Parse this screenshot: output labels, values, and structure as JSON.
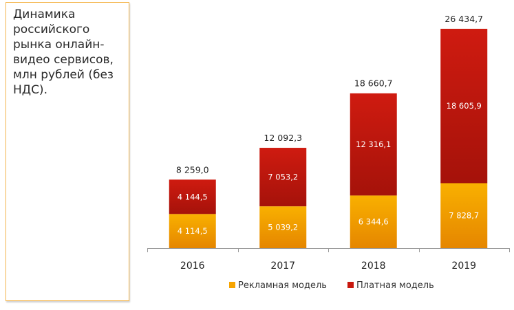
{
  "title": "Динамика российского рынка онлайн-видео сервисов, млн рублей (без НДС).",
  "colors": {
    "advertising": "#f7a400",
    "advertising_dark": "#e07f00",
    "paid": "#c8180e",
    "paid_dark": "#a81008",
    "axis": "#9a9a9a",
    "text": "#222222"
  },
  "chart_data": {
    "type": "bar",
    "stacked": true,
    "title": "Динамика российского рынка онлайн-видео сервисов, млн рублей (без НДС).",
    "categories": [
      "2016",
      "2017",
      "2018",
      "2019"
    ],
    "series": [
      {
        "name": "Рекламная модель",
        "values": [
          4114.5,
          5039.2,
          6344.6,
          7828.7
        ],
        "labels": [
          "4 114,5",
          "5 039,2",
          "6 344,6",
          "7 828,7"
        ]
      },
      {
        "name": "Платная модель",
        "values": [
          4144.5,
          7053.2,
          12316.1,
          18605.9
        ],
        "labels": [
          "4 144,5",
          "7 053,2",
          "12 316,1",
          "18 605,9"
        ]
      }
    ],
    "totals": [
      8259.0,
      12092.3,
      18660.7,
      26434.7
    ],
    "total_labels": [
      "8 259,0",
      "12 092,3",
      "18 660,7",
      "26 434,7"
    ],
    "ylim": [
      0,
      28000
    ],
    "grid": false,
    "legend_position": "bottom"
  }
}
